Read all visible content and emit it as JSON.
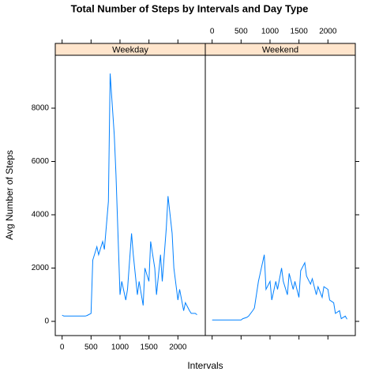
{
  "chart_data": {
    "type": "line",
    "title": "Total Number of Steps by Intervals and Day Type",
    "x_label": "Intervals",
    "y_label": "Avg Number of Steps",
    "x": [
      0,
      30,
      100,
      130,
      200,
      230,
      300,
      330,
      400,
      430,
      500,
      530,
      600,
      630,
      700,
      730,
      800,
      830,
      900,
      930,
      1000,
      1030,
      1100,
      1130,
      1200,
      1230,
      1300,
      1330,
      1400,
      1430,
      1500,
      1530,
      1600,
      1630,
      1700,
      1730,
      1800,
      1830,
      1900,
      1930,
      2000,
      2030,
      2100,
      2130,
      2200,
      2230,
      2300,
      2330
    ],
    "series": [
      {
        "name": "Weekday",
        "color": "#0080ff",
        "values": [
          230,
          200,
          200,
          200,
          200,
          200,
          200,
          200,
          200,
          220,
          300,
          2300,
          2800,
          2500,
          3000,
          2700,
          4500,
          9300,
          7000,
          5500,
          1000,
          1500,
          800,
          1200,
          3300,
          2500,
          1000,
          1500,
          600,
          2000,
          1500,
          3000,
          2000,
          1000,
          2500,
          1500,
          3500,
          4700,
          3300,
          2000,
          800,
          1200,
          400,
          700,
          400,
          300,
          300,
          250
        ]
      },
      {
        "name": "Weekend",
        "color": "#0080ff",
        "values": [
          50,
          50,
          50,
          50,
          50,
          50,
          50,
          50,
          50,
          50,
          50,
          100,
          150,
          200,
          400,
          500,
          1500,
          1800,
          2500,
          1200,
          1500,
          800,
          1500,
          1200,
          2000,
          1500,
          1000,
          1800,
          1200,
          1500,
          900,
          1900,
          2200,
          1700,
          1400,
          1600,
          1000,
          1300,
          900,
          1300,
          1200,
          800,
          700,
          300,
          400,
          100,
          200,
          80
        ]
      }
    ],
    "xlim": [
      -118,
      2473
    ],
    "xticks": [
      0,
      500,
      1000,
      1500,
      2000
    ],
    "ylim": [
      -533,
      9985
    ],
    "yticks": [
      0,
      2000,
      4000,
      6000,
      8000
    ],
    "strip_color": "#ffe5cc"
  }
}
